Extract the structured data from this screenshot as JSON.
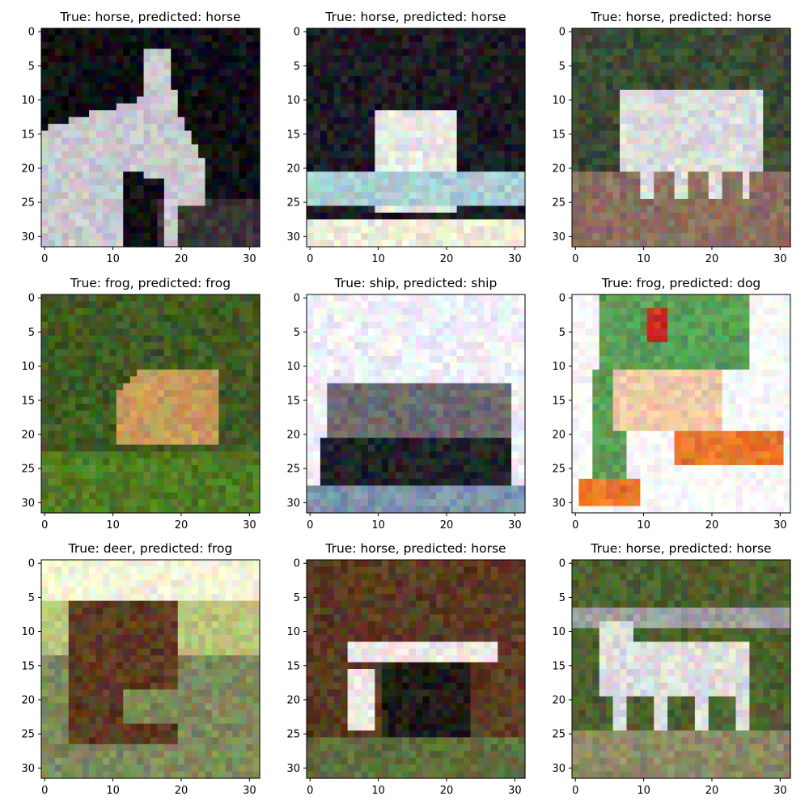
{
  "figure": {
    "background": "#ffffff",
    "axis_color": "#000000"
  },
  "chart_data": [
    {
      "type": "image",
      "title": "True: horse, predicted: horse",
      "true_label": "horse",
      "predicted_label": "horse",
      "xlim": [
        -0.5,
        31.5
      ],
      "ylim": [
        31.5,
        -0.5
      ],
      "xticks": [
        0,
        10,
        20,
        30
      ],
      "yticks": [
        0,
        5,
        10,
        15,
        20,
        25,
        30
      ],
      "grid": false,
      "colors": {
        "background": "#0f1014",
        "subject": "#c9c9cd",
        "shadow": "#3a3434"
      }
    },
    {
      "type": "image",
      "title": "True: horse, predicted: horse",
      "true_label": "horse",
      "predicted_label": "horse",
      "xlim": [
        -0.5,
        31.5
      ],
      "ylim": [
        31.5,
        -0.5
      ],
      "xticks": [
        0,
        10,
        20,
        30
      ],
      "yticks": [
        0,
        5,
        10,
        15,
        20,
        25,
        30
      ],
      "grid": false,
      "colors": {
        "background": "#1c1a22",
        "subject": "#e6e8e3",
        "ground": "#f1edd8",
        "fence": "#a9cfd6"
      }
    },
    {
      "type": "image",
      "title": "True: horse, predicted: horse",
      "true_label": "horse",
      "predicted_label": "horse",
      "xlim": [
        -0.5,
        31.5
      ],
      "ylim": [
        31.5,
        -0.5
      ],
      "xticks": [
        0,
        10,
        20,
        30
      ],
      "yticks": [
        0,
        5,
        10,
        15,
        20,
        25,
        30
      ],
      "grid": false,
      "colors": {
        "background": "#3a4a32",
        "subject": "#dcdcdc",
        "ground": "#8c6f5f"
      }
    },
    {
      "type": "image",
      "title": "True: frog, predicted: frog",
      "true_label": "frog",
      "predicted_label": "frog",
      "xlim": [
        -0.5,
        31.5
      ],
      "ylim": [
        31.5,
        -0.5
      ],
      "xticks": [
        0,
        10,
        20,
        30
      ],
      "yticks": [
        0,
        5,
        10,
        15,
        20,
        25,
        30
      ],
      "grid": false,
      "colors": {
        "background": "#3f5a22",
        "subject": "#c49a5a",
        "ground": "#4f7a23"
      }
    },
    {
      "type": "image",
      "title": "True: ship, predicted: ship",
      "true_label": "ship",
      "predicted_label": "ship",
      "xlim": [
        -0.5,
        31.5
      ],
      "ylim": [
        31.5,
        -0.5
      ],
      "xticks": [
        0,
        10,
        20,
        30
      ],
      "yticks": [
        0,
        5,
        10,
        15,
        20,
        25,
        30
      ],
      "grid": false,
      "colors": {
        "background": "#f2f0fa",
        "subject": "#6b6a6e",
        "hull": "#202226",
        "water": "#7c95ad"
      }
    },
    {
      "type": "image",
      "title": "True: frog, predicted: dog",
      "true_label": "frog",
      "predicted_label": "dog",
      "xlim": [
        -0.5,
        31.5
      ],
      "ylim": [
        31.5,
        -0.5
      ],
      "xticks": [
        0,
        10,
        20,
        30
      ],
      "yticks": [
        0,
        5,
        10,
        15,
        20,
        25,
        30
      ],
      "grid": false,
      "colors": {
        "background": "#fdfdfd",
        "subject": "#5b9e55",
        "belly": "#f0c9a8",
        "accent": "#c9301f",
        "feet": "#e8762a"
      }
    },
    {
      "type": "image",
      "title": "True: deer, predicted: frog",
      "true_label": "deer",
      "predicted_label": "frog",
      "xlim": [
        -0.5,
        31.5
      ],
      "ylim": [
        31.5,
        -0.5
      ],
      "xticks": [
        0,
        10,
        20,
        30
      ],
      "yticks": [
        0,
        5,
        10,
        15,
        20,
        25,
        30
      ],
      "grid": false,
      "colors": {
        "background": "#b9c57a",
        "subject": "#5c3a20",
        "ground": "#7d8a5a",
        "sky": "#f6f8d8"
      }
    },
    {
      "type": "image",
      "title": "True: horse, predicted: horse",
      "true_label": "horse",
      "predicted_label": "horse",
      "xlim": [
        -0.5,
        31.5
      ],
      "ylim": [
        31.5,
        -0.5
      ],
      "xticks": [
        0,
        10,
        20,
        30
      ],
      "yticks": [
        0,
        5,
        10,
        15,
        20,
        25,
        30
      ],
      "grid": false,
      "colors": {
        "background": "#5a3a22",
        "subject": "#efe7e2",
        "dark": "#1f1a16",
        "ground": "#5f6f3a"
      }
    },
    {
      "type": "image",
      "title": "True: horse, predicted: horse",
      "true_label": "horse",
      "predicted_label": "horse",
      "xlim": [
        -0.5,
        31.5
      ],
      "ylim": [
        31.5,
        -0.5
      ],
      "xticks": [
        0,
        10,
        20,
        30
      ],
      "yticks": [
        0,
        5,
        10,
        15,
        20,
        25,
        30
      ],
      "grid": false,
      "colors": {
        "background": "#4d5f2d",
        "subject": "#dedede",
        "ground": "#8c8a66",
        "band": "#9fa0a0"
      }
    }
  ]
}
